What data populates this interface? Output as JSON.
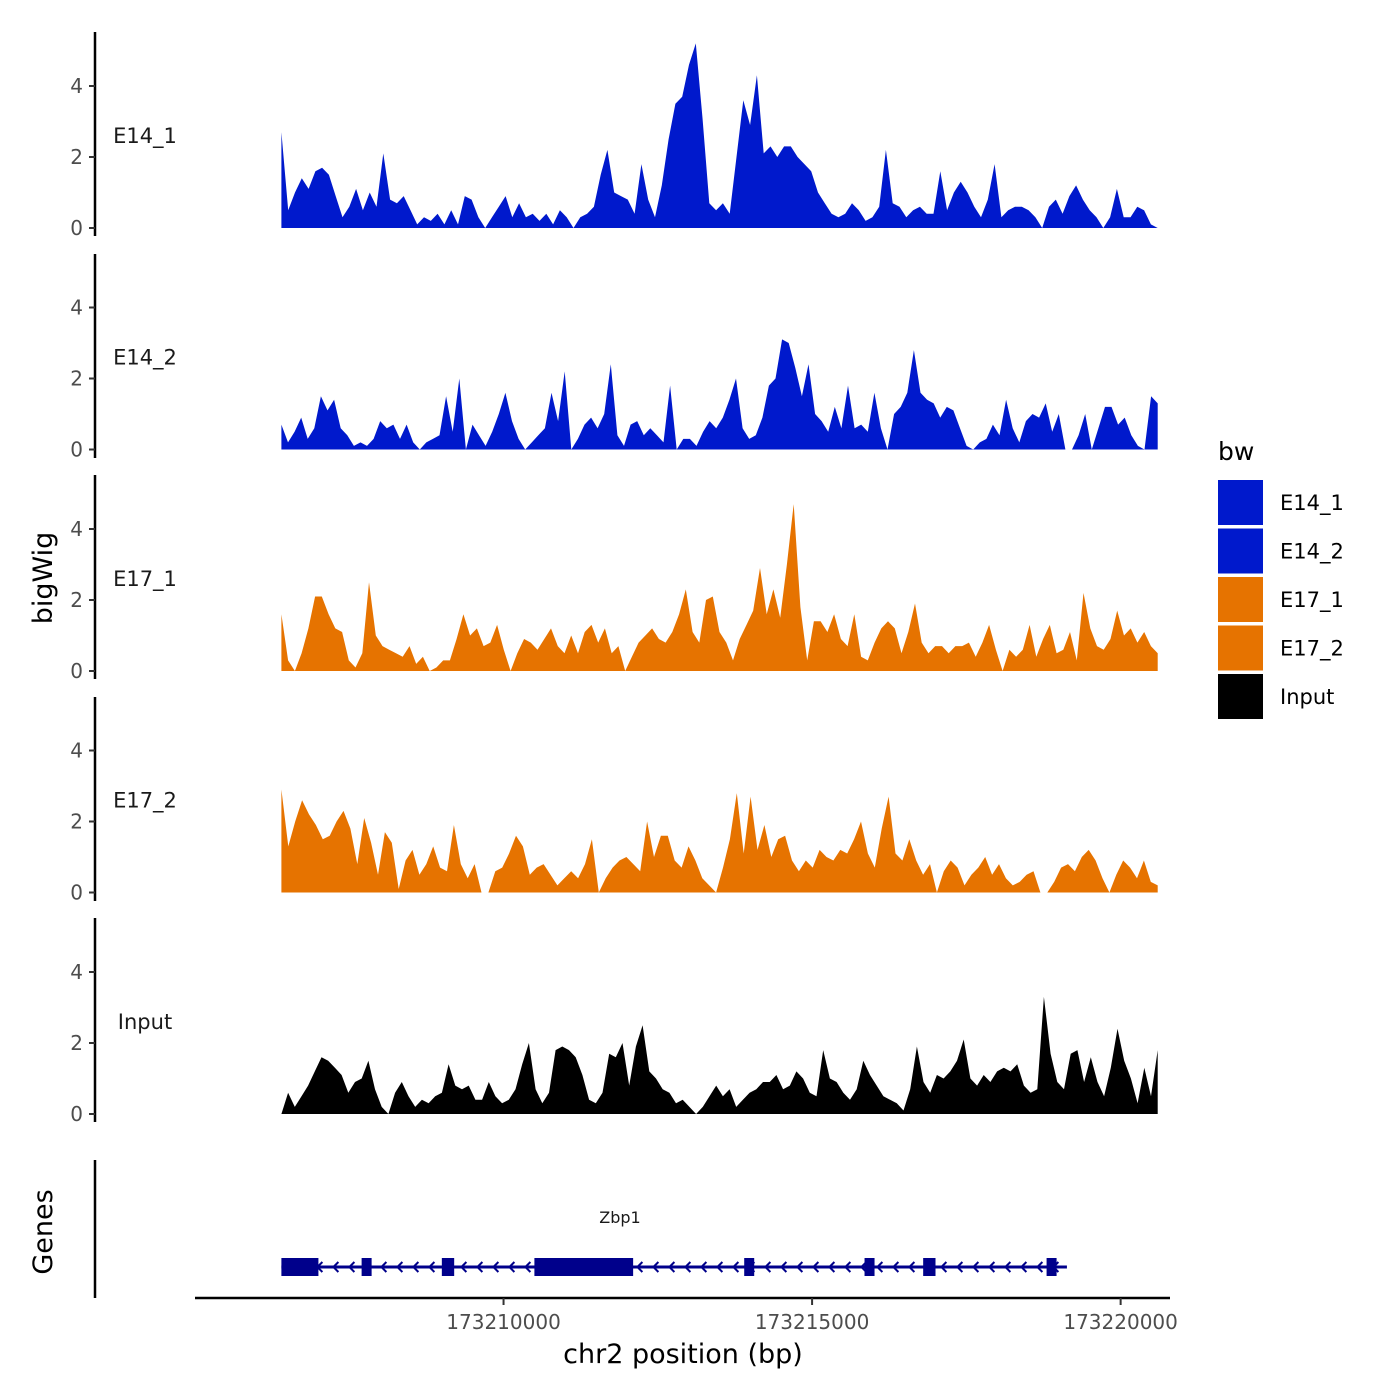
{
  "chart_data": {
    "type": "area",
    "y_axis_title": "bigWig",
    "genes_axis_title": "Genes",
    "xlabel": "chr2 position (bp)",
    "xlim": [
      173205000,
      173220800
    ],
    "x_ticks": [
      173210000,
      173215000,
      173220000
    ],
    "x_tick_labels": [
      "173210000",
      "173215000",
      "173220000"
    ],
    "ylim": [
      0,
      5.4
    ],
    "y_ticks": [
      0,
      2,
      4
    ],
    "y_tick_labels": [
      "0",
      "2",
      "4"
    ],
    "x_start": 173206400,
    "x_end": 173220600,
    "legend": {
      "title": "bw",
      "entries": [
        {
          "name": "E14_1",
          "color": "#0019CC"
        },
        {
          "name": "E14_2",
          "color": "#0019CC"
        },
        {
          "name": "E17_1",
          "color": "#E67300"
        },
        {
          "name": "E17_2",
          "color": "#E67300"
        },
        {
          "name": "Input",
          "color": "#000000"
        }
      ]
    },
    "series": [
      {
        "name": "E14_1",
        "color": "#0019CC",
        "values": [
          2.7,
          0.5,
          1.0,
          1.4,
          1.1,
          1.6,
          1.7,
          1.5,
          0.9,
          0.3,
          0.6,
          1.1,
          0.5,
          1.0,
          0.6,
          2.1,
          0.8,
          0.7,
          0.9,
          0.5,
          0.1,
          0.3,
          0.2,
          0.4,
          0.1,
          0.5,
          0.1,
          0.9,
          0.8,
          0.3,
          0.0,
          0.3,
          0.6,
          0.9,
          0.3,
          0.7,
          0.3,
          0.4,
          0.2,
          0.4,
          0.1,
          0.5,
          0.3,
          0.0,
          0.3,
          0.4,
          0.6,
          1.5,
          2.2,
          1.0,
          0.9,
          0.8,
          0.4,
          1.8,
          0.8,
          0.3,
          1.2,
          2.5,
          3.5,
          3.7,
          4.6,
          5.2,
          3.1,
          0.7,
          0.5,
          0.7,
          0.4,
          2.0,
          3.6,
          2.9,
          4.3,
          2.1,
          2.3,
          2.0,
          2.3,
          2.3,
          2.0,
          1.8,
          1.6,
          1.0,
          0.7,
          0.4,
          0.3,
          0.4,
          0.7,
          0.5,
          0.2,
          0.3,
          0.6,
          2.2,
          0.7,
          0.6,
          0.3,
          0.5,
          0.6,
          0.4,
          0.4,
          1.6,
          0.5,
          1.0,
          1.3,
          1.0,
          0.6,
          0.3,
          0.8,
          1.8,
          0.3,
          0.5,
          0.6,
          0.6,
          0.5,
          0.3,
          0.0,
          0.6,
          0.8,
          0.4,
          0.9,
          1.2,
          0.8,
          0.5,
          0.3,
          0.0,
          0.3,
          1.1,
          0.3,
          0.3,
          0.6,
          0.5,
          0.1,
          0.0
        ]
      },
      {
        "name": "E14_2",
        "color": "#0019CC",
        "values": [
          0.7,
          0.2,
          0.5,
          0.9,
          0.3,
          0.6,
          1.5,
          1.1,
          1.4,
          0.6,
          0.4,
          0.1,
          0.2,
          0.1,
          0.3,
          0.8,
          0.6,
          0.7,
          0.3,
          0.7,
          0.2,
          0.0,
          0.2,
          0.3,
          0.4,
          1.5,
          0.5,
          2.0,
          0.0,
          0.7,
          0.4,
          0.1,
          0.5,
          1.0,
          1.6,
          0.8,
          0.3,
          0.0,
          0.2,
          0.4,
          0.6,
          1.6,
          0.8,
          2.2,
          0.0,
          0.3,
          0.7,
          0.9,
          0.6,
          1.0,
          2.4,
          0.4,
          0.1,
          0.7,
          0.8,
          0.4,
          0.6,
          0.4,
          0.2,
          1.8,
          0.0,
          0.3,
          0.3,
          0.1,
          0.5,
          0.8,
          0.6,
          0.9,
          1.4,
          2.0,
          0.6,
          0.3,
          0.4,
          0.9,
          1.8,
          2.0,
          3.1,
          3.0,
          2.3,
          1.5,
          2.4,
          1.0,
          0.8,
          0.5,
          1.2,
          0.6,
          1.8,
          0.6,
          0.7,
          0.5,
          1.6,
          0.6,
          0.0,
          1.0,
          1.2,
          1.6,
          2.8,
          1.6,
          1.4,
          1.3,
          0.9,
          1.2,
          1.1,
          0.6,
          0.1,
          0.0,
          0.2,
          0.3,
          0.7,
          0.4,
          1.4,
          0.6,
          0.2,
          0.8,
          1.0,
          0.9,
          1.3,
          0.5,
          1.0,
          0.0,
          0.0,
          0.4,
          1.0,
          0.0,
          0.6,
          1.2,
          1.2,
          0.7,
          0.9,
          0.4,
          0.1,
          0.0,
          1.5,
          1.3
        ]
      },
      {
        "name": "E17_1",
        "color": "#E67300",
        "values": [
          1.6,
          0.3,
          0.0,
          0.5,
          1.2,
          2.1,
          2.1,
          1.6,
          1.2,
          1.1,
          0.3,
          0.1,
          0.5,
          2.5,
          1.0,
          0.7,
          0.6,
          0.5,
          0.4,
          0.7,
          0.2,
          0.4,
          0.0,
          0.1,
          0.3,
          0.3,
          0.9,
          1.6,
          1.0,
          1.2,
          0.7,
          0.8,
          1.3,
          0.6,
          0.0,
          0.5,
          0.9,
          0.8,
          0.6,
          0.9,
          1.2,
          0.7,
          0.5,
          1.0,
          0.5,
          1.1,
          1.3,
          0.8,
          1.2,
          0.5,
          0.7,
          0.0,
          0.4,
          0.8,
          1.0,
          1.2,
          0.9,
          0.8,
          1.1,
          1.6,
          2.3,
          1.1,
          0.8,
          2.0,
          2.1,
          1.1,
          0.8,
          0.3,
          0.9,
          1.3,
          1.7,
          2.9,
          1.6,
          2.3,
          1.5,
          3.0,
          4.7,
          1.8,
          0.3,
          1.4,
          1.4,
          1.1,
          1.6,
          0.9,
          0.7,
          1.6,
          0.4,
          0.3,
          0.8,
          1.2,
          1.4,
          1.2,
          0.5,
          1.1,
          1.9,
          0.8,
          0.5,
          0.7,
          0.7,
          0.5,
          0.7,
          0.7,
          0.8,
          0.4,
          0.8,
          1.3,
          0.6,
          0.0,
          0.6,
          0.4,
          0.6,
          1.3,
          0.4,
          0.9,
          1.3,
          0.5,
          0.6,
          1.1,
          0.3,
          2.2,
          1.2,
          0.7,
          0.6,
          0.9,
          1.7,
          1.0,
          1.2,
          0.8,
          1.1,
          0.7,
          0.5
        ]
      },
      {
        "name": "E17_2",
        "color": "#E67300",
        "values": [
          2.9,
          1.3,
          2.0,
          2.6,
          2.2,
          1.9,
          1.5,
          1.6,
          2.0,
          2.3,
          1.8,
          0.8,
          2.1,
          1.4,
          0.5,
          1.7,
          1.4,
          0.1,
          0.9,
          1.2,
          0.5,
          0.8,
          1.3,
          0.7,
          0.6,
          1.9,
          0.8,
          0.4,
          0.8,
          0.0,
          0.0,
          0.6,
          0.7,
          1.1,
          1.6,
          1.3,
          0.5,
          0.7,
          0.8,
          0.5,
          0.2,
          0.4,
          0.6,
          0.4,
          0.8,
          1.5,
          0.0,
          0.4,
          0.7,
          0.9,
          1.0,
          0.8,
          0.6,
          2.0,
          1.0,
          1.6,
          1.6,
          0.9,
          0.7,
          1.3,
          0.9,
          0.4,
          0.2,
          0.0,
          0.7,
          1.5,
          2.8,
          1.1,
          2.7,
          1.2,
          1.9,
          1.0,
          1.5,
          1.6,
          0.9,
          0.6,
          0.9,
          0.7,
          1.2,
          1.0,
          0.9,
          1.2,
          1.1,
          1.5,
          2.0,
          1.1,
          0.7,
          1.8,
          2.7,
          1.1,
          0.9,
          1.5,
          0.9,
          0.5,
          0.8,
          0.0,
          0.6,
          0.9,
          0.7,
          0.2,
          0.5,
          0.7,
          1.0,
          0.5,
          0.8,
          0.4,
          0.2,
          0.3,
          0.5,
          0.6,
          0.0,
          0.0,
          0.3,
          0.7,
          0.8,
          0.6,
          1.0,
          1.2,
          0.9,
          0.4,
          0.0,
          0.5,
          0.9,
          0.7,
          0.4,
          0.9,
          0.3,
          0.2
        ]
      },
      {
        "name": "Input",
        "color": "#000000",
        "values": [
          0.0,
          0.6,
          0.2,
          0.5,
          0.8,
          1.2,
          1.6,
          1.5,
          1.3,
          1.1,
          0.6,
          0.9,
          1.0,
          1.5,
          0.7,
          0.2,
          0.0,
          0.6,
          0.9,
          0.5,
          0.2,
          0.4,
          0.3,
          0.5,
          0.6,
          1.4,
          0.8,
          0.7,
          0.8,
          0.4,
          0.4,
          0.9,
          0.5,
          0.3,
          0.4,
          0.7,
          1.4,
          2.0,
          0.7,
          0.3,
          0.6,
          1.8,
          1.9,
          1.8,
          1.6,
          1.1,
          0.4,
          0.3,
          0.6,
          1.7,
          1.6,
          2.0,
          0.8,
          1.9,
          2.5,
          1.2,
          1.0,
          0.7,
          0.6,
          0.3,
          0.4,
          0.2,
          0.0,
          0.2,
          0.5,
          0.8,
          0.5,
          0.7,
          0.2,
          0.4,
          0.6,
          0.7,
          0.9,
          0.9,
          1.1,
          0.7,
          0.8,
          1.2,
          1.0,
          0.6,
          0.5,
          1.8,
          1.0,
          0.9,
          0.6,
          0.4,
          0.7,
          1.5,
          1.1,
          0.8,
          0.5,
          0.4,
          0.3,
          0.1,
          0.7,
          1.9,
          0.9,
          0.6,
          1.1,
          1.0,
          1.2,
          1.5,
          2.1,
          1.0,
          0.8,
          1.1,
          0.9,
          1.2,
          1.3,
          1.2,
          1.4,
          0.8,
          0.6,
          0.7,
          3.3,
          1.7,
          0.9,
          0.7,
          1.7,
          1.8,
          0.9,
          1.6,
          0.9,
          0.5,
          1.3,
          2.4,
          1.5,
          1.0,
          0.3,
          1.3,
          0.5,
          1.8
        ]
      }
    ],
    "gene_track": {
      "gene": "Zbp1",
      "color": "#00008B",
      "strand": "-",
      "start": 173206400,
      "end": 173219000,
      "exons": [
        [
          173206400,
          173207000
        ],
        [
          173207700,
          173207850
        ],
        [
          173209000,
          173209200
        ],
        [
          173210500,
          173212100
        ],
        [
          173213900,
          173214050
        ],
        [
          173215850,
          173216000
        ],
        [
          173216800,
          173217000
        ],
        [
          173218800,
          173218950
        ]
      ]
    }
  }
}
